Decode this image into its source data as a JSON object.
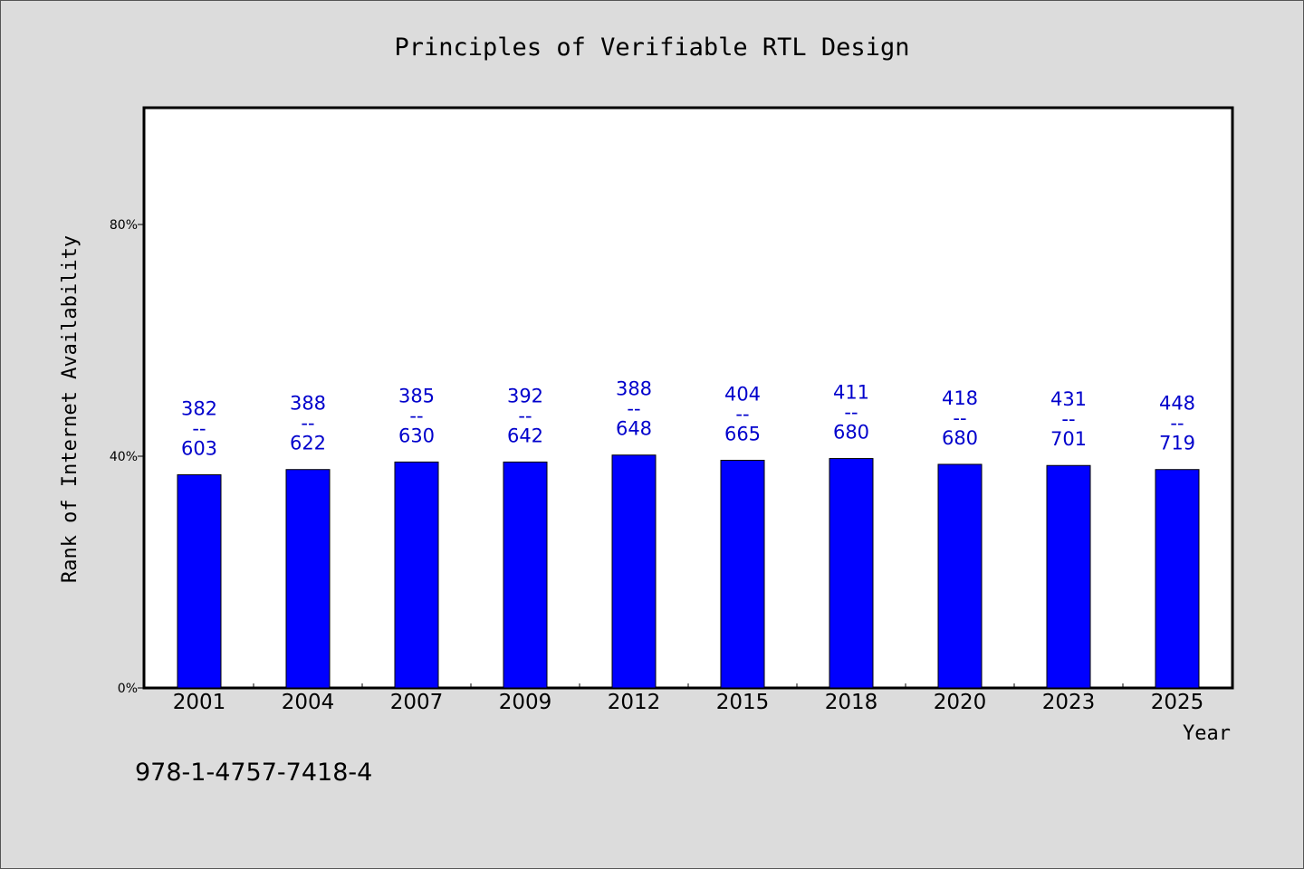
{
  "chart_data": {
    "type": "bar",
    "title": "Principles of Verifiable RTL Design",
    "xlabel": "Year",
    "ylabel": "Rank of Internet Availability",
    "categories": [
      "2001",
      "2004",
      "2007",
      "2009",
      "2012",
      "2015",
      "2018",
      "2020",
      "2023",
      "2025"
    ],
    "values": [
      36.8,
      37.7,
      39.0,
      39.0,
      40.2,
      39.3,
      39.6,
      38.6,
      38.4,
      37.7
    ],
    "value_unit": "%",
    "data_labels": [
      {
        "top": "382",
        "sep": "--",
        "bottom": "603"
      },
      {
        "top": "388",
        "sep": "--",
        "bottom": "622"
      },
      {
        "top": "385",
        "sep": "--",
        "bottom": "630"
      },
      {
        "top": "392",
        "sep": "--",
        "bottom": "642"
      },
      {
        "top": "388",
        "sep": "--",
        "bottom": "648"
      },
      {
        "top": "404",
        "sep": "--",
        "bottom": "665"
      },
      {
        "top": "411",
        "sep": "--",
        "bottom": "680"
      },
      {
        "top": "418",
        "sep": "--",
        "bottom": "680"
      },
      {
        "top": "431",
        "sep": "--",
        "bottom": "701"
      },
      {
        "top": "448",
        "sep": "--",
        "bottom": "719"
      }
    ],
    "yticks": [
      {
        "value": 0,
        "label": "0%"
      },
      {
        "value": 40,
        "label": "40%"
      },
      {
        "value": 80,
        "label": "80%"
      }
    ],
    "ylim": [
      0,
      100
    ],
    "grid": false,
    "legend": "none",
    "bar_color": "#0000ff",
    "label_color": "#0000cc"
  },
  "footer": {
    "isbn": "978-1-4757-7418-4"
  }
}
